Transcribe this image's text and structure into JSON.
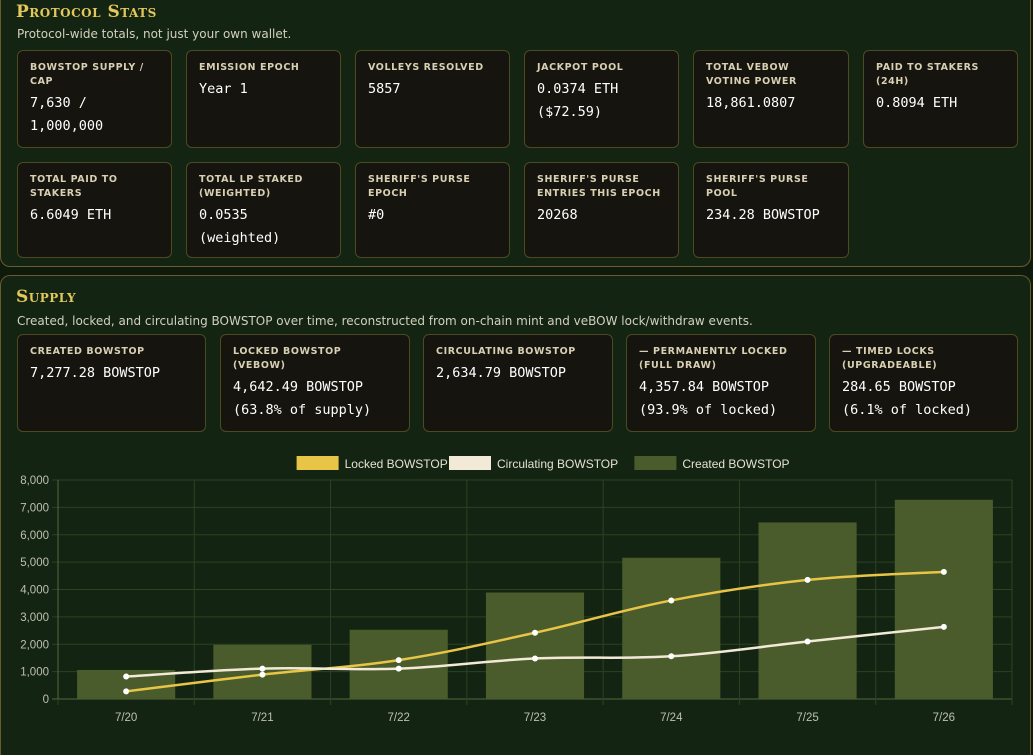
{
  "protocol_stats": {
    "title": "Protocol Stats",
    "subtitle": "Protocol-wide totals, not just your own wallet.",
    "cards": [
      {
        "label": "BOWSTOP SUPPLY / CAP",
        "value": "7,630 /\n1,000,000"
      },
      {
        "label": "EMISSION EPOCH",
        "value": "Year 1"
      },
      {
        "label": "VOLLEYS RESOLVED",
        "value": "5857"
      },
      {
        "label": "JACKPOT POOL",
        "value": "0.0374 ETH\n($72.59)"
      },
      {
        "label": "TOTAL VEBOW VOTING POWER",
        "value": "18,861.0807"
      },
      {
        "label": "PAID TO STAKERS (24H)",
        "value": "0.8094 ETH"
      },
      {
        "label": "TOTAL PAID TO STAKERS",
        "value": "6.6049 ETH"
      },
      {
        "label": "TOTAL LP STAKED (WEIGHTED)",
        "value": "0.0535\n(weighted)"
      },
      {
        "label": "SHERIFF'S PURSE EPOCH",
        "value": "#0"
      },
      {
        "label": "SHERIFF'S PURSE ENTRIES THIS EPOCH",
        "value": "20268"
      },
      {
        "label": "SHERIFF'S PURSE POOL",
        "value": "234.28 BOWSTOP"
      }
    ]
  },
  "supply": {
    "title": "Supply",
    "subtitle": "Created, locked, and circulating BOWSTOP over time, reconstructed from on-chain mint and veBOW lock/withdraw events.",
    "cards": [
      {
        "label": "CREATED BOWSTOP",
        "value": "7,277.28 BOWSTOP"
      },
      {
        "label": "LOCKED BOWSTOP (VEBOW)",
        "value": "4,642.49 BOWSTOP\n(63.8% of supply)"
      },
      {
        "label": "CIRCULATING BOWSTOP",
        "value": "2,634.79 BOWSTOP"
      },
      {
        "label": "— PERMANENTLY LOCKED (FULL DRAW)",
        "value": "4,357.84 BOWSTOP\n(93.9% of locked)"
      },
      {
        "label": "— TIMED LOCKS (UPGRADEABLE)",
        "value": "284.65 BOWSTOP\n(6.1% of locked)"
      }
    ]
  },
  "chart_data": {
    "type": "bar",
    "categories": [
      "7/20",
      "7/21",
      "7/22",
      "7/23",
      "7/24",
      "7/25",
      "7/26"
    ],
    "ylim": [
      0,
      8000
    ],
    "yticks": [
      0,
      1000,
      2000,
      3000,
      4000,
      5000,
      6000,
      7000,
      8000
    ],
    "ytick_labels": [
      "0",
      "1,000",
      "2,000",
      "3,000",
      "4,000",
      "5,000",
      "6,000",
      "7,000",
      "8,000"
    ],
    "legend_position": "top",
    "grid": true,
    "series": [
      {
        "name": "Locked BOWSTOP",
        "kind": "line",
        "color": "#e8c547",
        "values": [
          280,
          890,
          1420,
          2420,
          3600,
          4350,
          4642
        ]
      },
      {
        "name": "Circulating BOWSTOP",
        "kind": "line",
        "color": "#f2ead6",
        "values": [
          820,
          1110,
          1110,
          1480,
          1560,
          2100,
          2635
        ]
      },
      {
        "name": "Created BOWSTOP",
        "kind": "bar",
        "color": "#4a5b2c",
        "values": [
          1060,
          1980,
          2530,
          3890,
          5160,
          6450,
          7277
        ]
      }
    ]
  }
}
